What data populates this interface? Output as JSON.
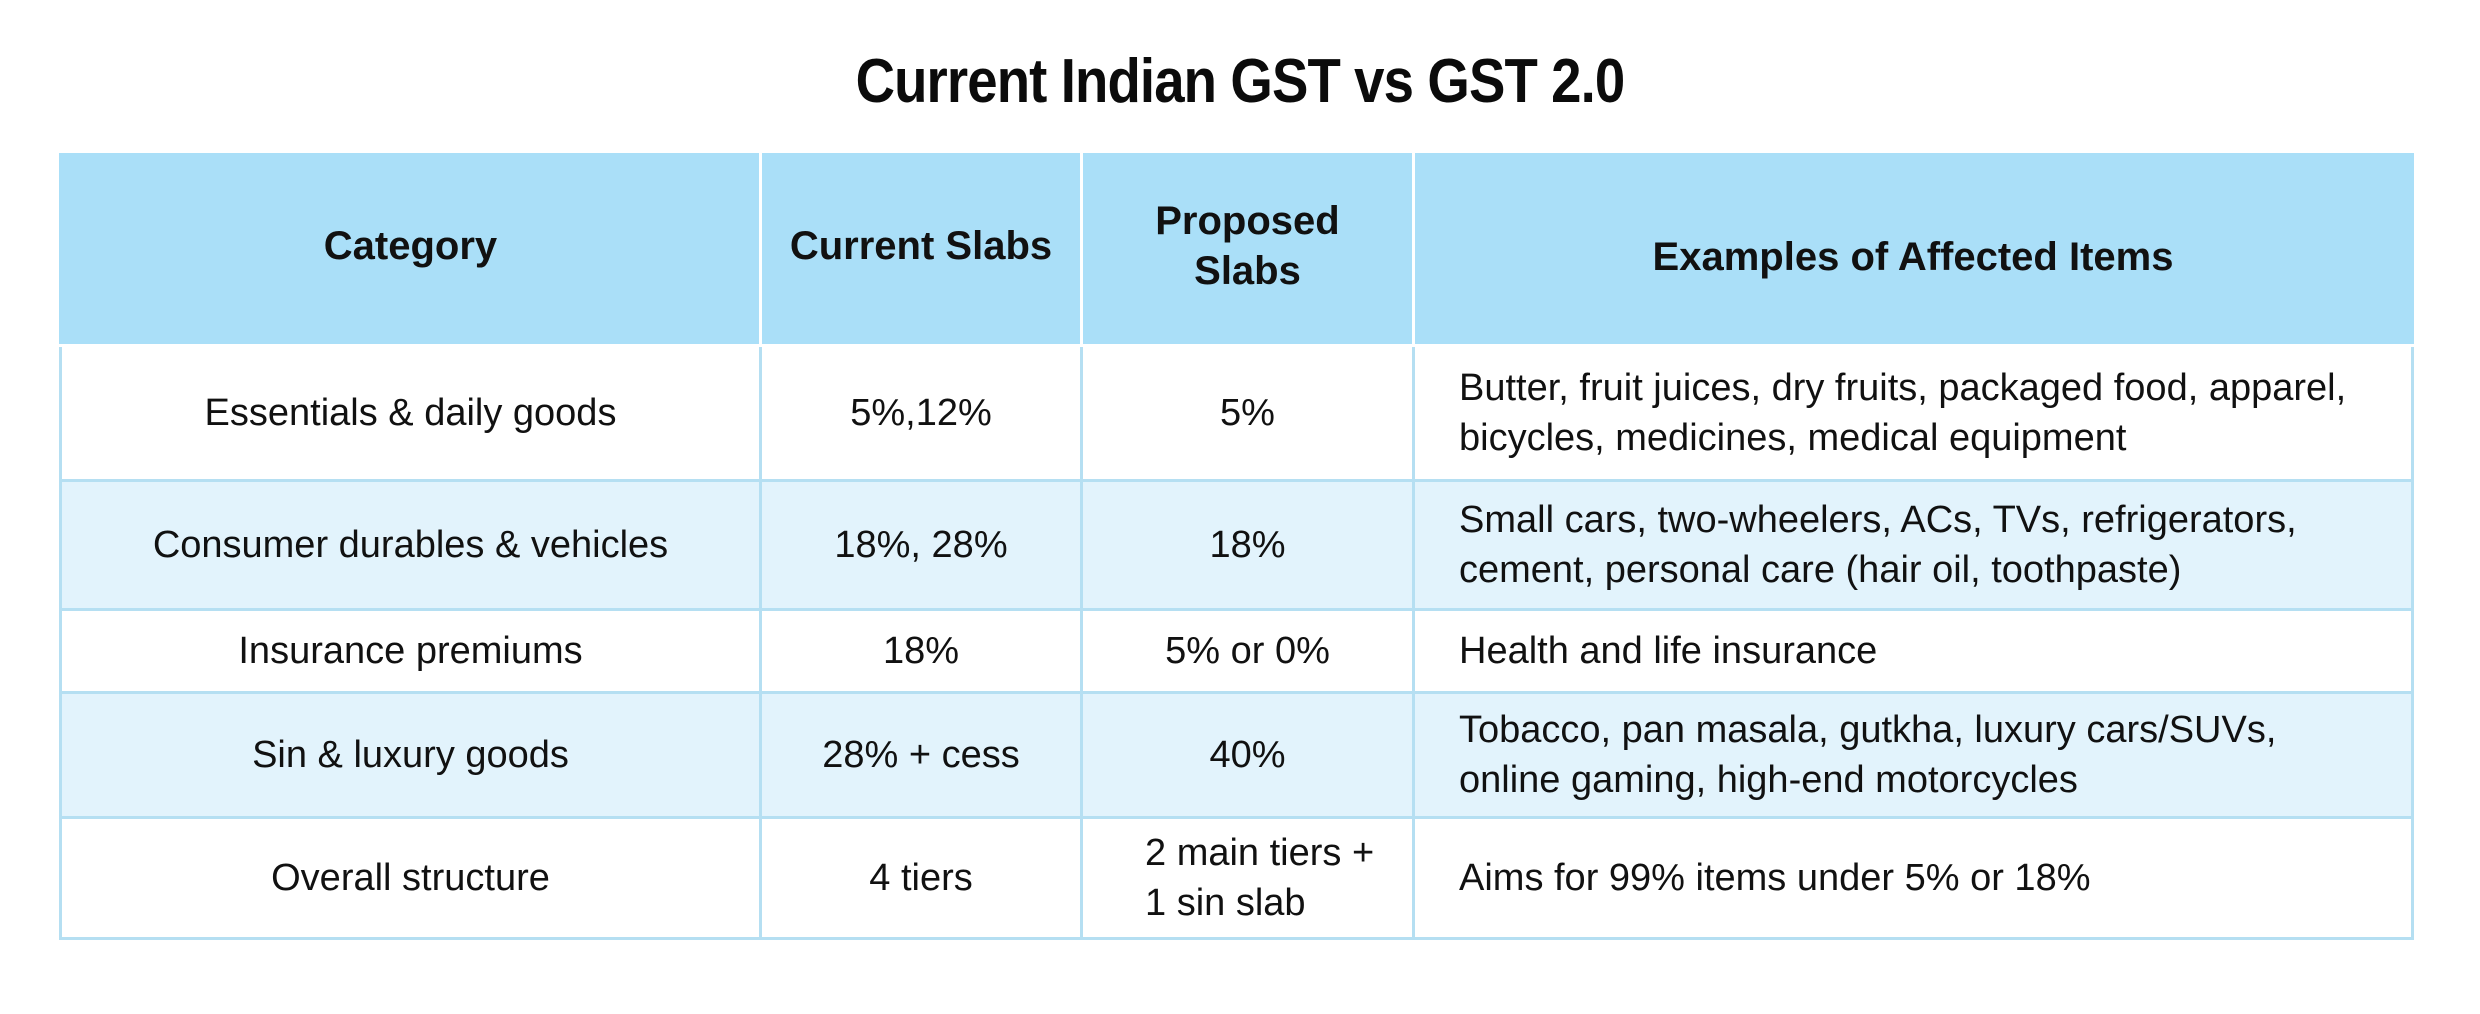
{
  "title": "Current Indian GST vs GST 2.0",
  "table": {
    "headers": [
      "Category",
      "Current Slabs",
      "Proposed Slabs",
      "Examples of Affected Items"
    ],
    "rows": [
      {
        "category": "Essentials & daily goods",
        "current": "5%,12%",
        "proposed": [
          "5%"
        ],
        "examples": [
          "Butter, fruit juices, dry fruits, packaged food, apparel,",
          "bicycles, medicines, medical equipment"
        ]
      },
      {
        "category": "Consumer durables & vehicles",
        "current": "18%, 28%",
        "proposed": [
          "18%"
        ],
        "examples": [
          "Small cars, two-wheelers, ACs, TVs, refrigerators,",
          "cement, personal care (hair oil, toothpaste)"
        ]
      },
      {
        "category": "Insurance premiums",
        "current": "18%",
        "proposed": [
          "5% or 0%"
        ],
        "examples": [
          "Health and life insurance"
        ]
      },
      {
        "category": "Sin & luxury goods",
        "current": "28% + cess",
        "proposed": [
          "40%"
        ],
        "examples": [
          "Tobacco, pan masala, gutkha, luxury cars/SUVs,",
          "online gaming, high-end motorcycles"
        ]
      },
      {
        "category": "Overall structure",
        "current": "4 tiers",
        "proposed": [
          "2 main tiers +",
          "1 sin slab"
        ],
        "examples": [
          "Aims for 99% items under 5% or 18%"
        ]
      }
    ]
  },
  "colors": {
    "header_bg": "#aadff8",
    "row_alt_bg": "#e2f3fc",
    "row_bg": "#ffffff",
    "border": "#b5dff2"
  }
}
